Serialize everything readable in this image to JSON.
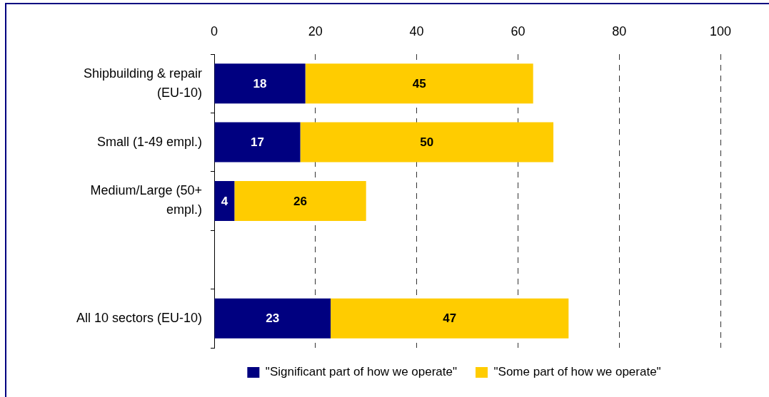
{
  "chart_data": {
    "type": "bar",
    "orientation": "horizontal",
    "stacked": true,
    "categories": [
      "Shipbuilding & repair (EU-10)",
      "Small (1-49 empl.)",
      "Medium/Large (50+ empl.)",
      null,
      "All 10 sectors (EU-10)"
    ],
    "series": [
      {
        "name": "\"Significant part of how we operate\"",
        "color": "#000080",
        "values": [
          18,
          17,
          4,
          null,
          23
        ]
      },
      {
        "name": "\"Some part of how we operate\"",
        "color": "#ffcc00",
        "values": [
          45,
          50,
          26,
          null,
          47
        ]
      }
    ],
    "xlim": [
      0,
      100
    ],
    "xticks": [
      0,
      20,
      40,
      60,
      80,
      100
    ],
    "grid": "x",
    "legend": "bottom",
    "data_labels": true
  }
}
